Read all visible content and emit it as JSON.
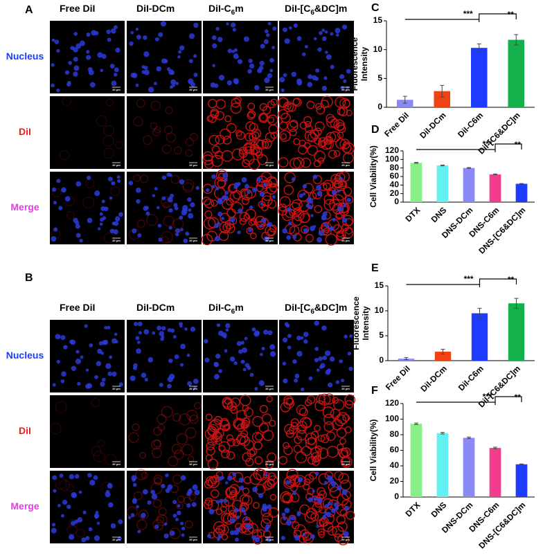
{
  "panels": [
    {
      "letter": "A",
      "columns": [
        [
          "Free DiI"
        ],
        [
          "DiI-DCm"
        ],
        [
          "DiI-C",
          "6",
          "m"
        ],
        [
          "DiI-[C",
          "6",
          "&DC]m"
        ]
      ],
      "rows": [
        "Nucleus",
        "DiI",
        "Merge"
      ],
      "scale_bar": "20 μm"
    },
    {
      "letter": "B",
      "columns": [
        [
          "Free DiI"
        ],
        [
          "DiI-DCm"
        ],
        [
          "DiI-C",
          "6",
          "m"
        ],
        [
          "DiI-[C",
          "6",
          "&DC]m"
        ]
      ],
      "rows": [
        "Nucleus",
        "DiI",
        "Merge"
      ],
      "scale_bar": "20 μm"
    }
  ],
  "chart_data": [
    {
      "type": "bar",
      "label": "C",
      "y_label": [
        "Fluorescence",
        "Intensity"
      ],
      "categories": [
        "Free DiI",
        "DiI-DCm",
        "DiI-C6m",
        "DiI-[C6&DC]m"
      ],
      "values": [
        1.3,
        2.8,
        10.3,
        11.7
      ],
      "errors": [
        0.6,
        1.0,
        0.7,
        0.9
      ],
      "colors": [
        "#8a8af5",
        "#ee4312",
        "#1d3cff",
        "#14b04c"
      ],
      "ylim": [
        0,
        15
      ],
      "yticks": [
        0,
        5,
        10,
        15
      ],
      "annotations": [
        "***",
        "**"
      ]
    },
    {
      "type": "bar",
      "label": "D",
      "y_label": [
        "Cell Viability(%)"
      ],
      "categories": [
        "DTX",
        "DNS",
        "DNS-DCm",
        "DNS-C6m",
        "DNS-[C6&DC]m"
      ],
      "values": [
        92,
        86,
        80,
        65,
        43
      ],
      "errors": [
        1,
        1,
        1,
        1,
        0.5
      ],
      "colors": [
        "#86f086",
        "#62f0f0",
        "#8a8af5",
        "#f23d8e",
        "#1d3cff"
      ],
      "ylim": [
        0,
        120
      ],
      "yticks": [
        0,
        20,
        40,
        60,
        80,
        100,
        120
      ],
      "annotations": [
        "***",
        "**"
      ]
    },
    {
      "type": "bar",
      "label": "E",
      "y_label": [
        "Fluorescence",
        "Intensity"
      ],
      "categories": [
        "Free DiI",
        "DiI-DCm",
        "DiI-C6m",
        "DiI-[C6&DC]m"
      ],
      "values": [
        0.4,
        1.8,
        9.5,
        11.5
      ],
      "errors": [
        0.2,
        0.5,
        1.0,
        1.0
      ],
      "colors": [
        "#8a8af5",
        "#ee4312",
        "#1d3cff",
        "#14b04c"
      ],
      "ylim": [
        0,
        15
      ],
      "yticks": [
        0,
        5,
        10,
        15
      ],
      "annotations": [
        "***",
        "**"
      ]
    },
    {
      "type": "bar",
      "label": "F",
      "y_label": [
        "Cell Viability(%)"
      ],
      "categories": [
        "DTX",
        "DNS",
        "DNS-DCm",
        "DNS-C6m",
        "DNS-[C6&DC]m"
      ],
      "values": [
        94,
        82,
        76,
        63,
        42
      ],
      "errors": [
        1,
        1,
        1,
        1,
        0.5
      ],
      "colors": [
        "#86f086",
        "#62f0f0",
        "#8a8af5",
        "#f23d8e",
        "#1d3cff"
      ],
      "ylim": [
        0,
        120
      ],
      "yticks": [
        0,
        20,
        40,
        60,
        80,
        100,
        120
      ],
      "annotations": [
        "***",
        "**"
      ]
    }
  ]
}
